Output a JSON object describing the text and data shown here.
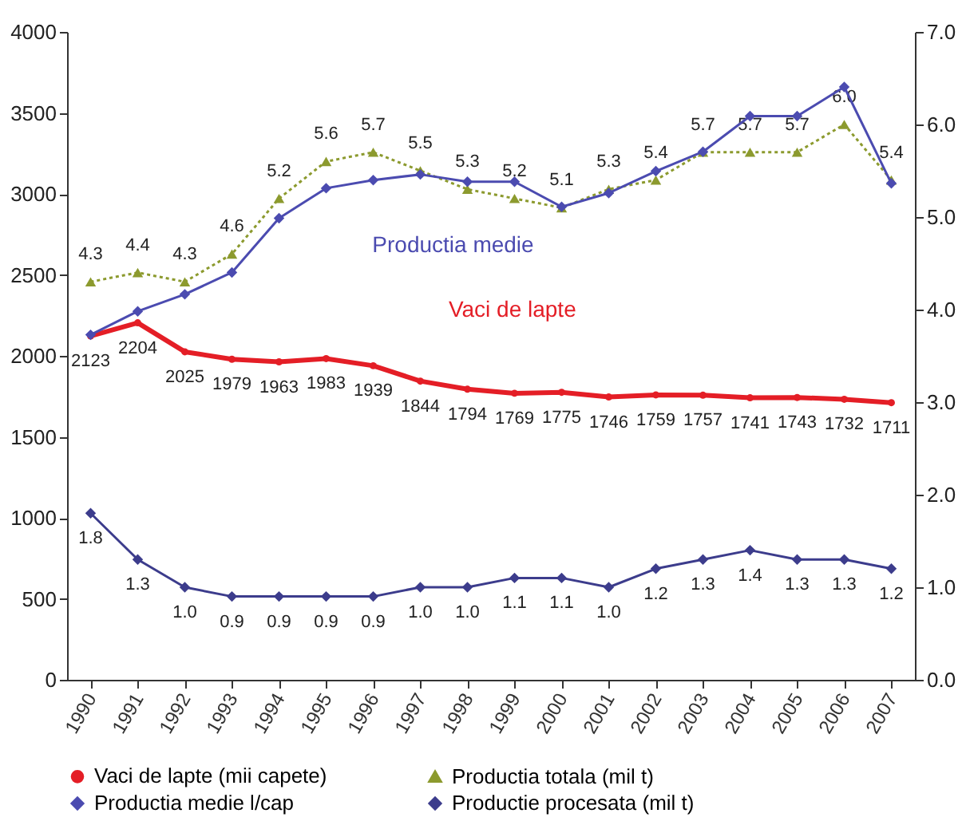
{
  "chart_data": {
    "type": "line",
    "categories": [
      "1990",
      "1991",
      "1992",
      "1993",
      "1994",
      "1995",
      "1996",
      "1997",
      "1998",
      "1999",
      "2000",
      "2001",
      "2002",
      "2003",
      "2004",
      "2005",
      "2006",
      "2007"
    ],
    "ylim": [
      0,
      4000
    ],
    "yticks": [
      0,
      500,
      1000,
      1500,
      2000,
      2500,
      3000,
      3500,
      4000
    ],
    "y2lim": [
      0,
      7
    ],
    "y2ticks": [
      {
        "value": 0,
        "label": "0.0"
      },
      {
        "value": 1,
        "label": "1.0"
      },
      {
        "value": 2,
        "label": "2.0"
      },
      {
        "value": 3,
        "label": "3.0"
      },
      {
        "value": 4,
        "label": "4.0"
      },
      {
        "value": 5,
        "label": "5.0"
      },
      {
        "value": 6,
        "label": "6.0"
      },
      {
        "value": 7,
        "label": "7.0"
      }
    ],
    "grid": false,
    "legend": "bottom",
    "series": [
      {
        "name": "Vaci de lapte (mii capete)",
        "color": "#e41e26",
        "marker": "circle",
        "line_style": "solid",
        "values": [
          2123,
          2204,
          2025,
          1979,
          1963,
          1983,
          1939,
          1844,
          1794,
          1769,
          1775,
          1746,
          1759,
          1757,
          1741,
          1743,
          1732,
          1711
        ],
        "value_labels": [
          "2123",
          "2204",
          "2025",
          "1979",
          "1963",
          "1983",
          "1939",
          "1844",
          "1794",
          "1769",
          "1775",
          "1746",
          "1759",
          "1757",
          "1741",
          "1743",
          "1732",
          "1711"
        ]
      },
      {
        "name": "Productia totala (mil t)",
        "color": "#8c9a2e",
        "marker": "triangle",
        "line_style": "dotted",
        "axis": "y2",
        "values": [
          4.3,
          4.4,
          4.3,
          4.6,
          5.2,
          5.6,
          5.7,
          5.5,
          5.3,
          5.2,
          5.1,
          5.3,
          5.4,
          5.7,
          5.7,
          5.7,
          6.0,
          5.4
        ],
        "value_labels": [
          "4.3",
          "4.4",
          "4.3",
          "4.6",
          "5.2",
          "5.6",
          "5.7",
          "5.5",
          "5.3",
          "5.2",
          "5.1",
          "5.3",
          "5.4",
          "5.7",
          "5.7",
          "5.7",
          "6.0",
          "5.4"
        ]
      },
      {
        "name": "Productia medie l/cap",
        "color": "#4b4bb0",
        "marker": "diamond",
        "line_style": "solid",
        "values": [
          2130,
          2275,
          2380,
          2515,
          2850,
          3035,
          3085,
          3120,
          3075,
          3075,
          2920,
          3005,
          3140,
          3260,
          3480,
          3480,
          3660,
          3065
        ]
      },
      {
        "name": "Productie procesata (mil t)",
        "color": "#3c3c8c",
        "marker": "diamond",
        "line_style": "solid",
        "axis": "y2",
        "values": [
          1.8,
          1.3,
          1.0,
          0.9,
          0.9,
          0.9,
          0.9,
          1.0,
          1.0,
          1.1,
          1.1,
          1.0,
          1.2,
          1.3,
          1.4,
          1.3,
          1.3,
          1.2
        ],
        "value_labels": [
          "1.8",
          "1.3",
          "1.0",
          "0.9",
          "0.9",
          "0.9",
          "0.9",
          "1.0",
          "1.0",
          "1.1",
          "1.1",
          "1.0",
          "1.2",
          "1.3",
          "1.4",
          "1.3",
          "1.3",
          "1.2"
        ]
      }
    ],
    "annotations": [
      "Productia medie",
      "Vaci de lapte"
    ]
  }
}
